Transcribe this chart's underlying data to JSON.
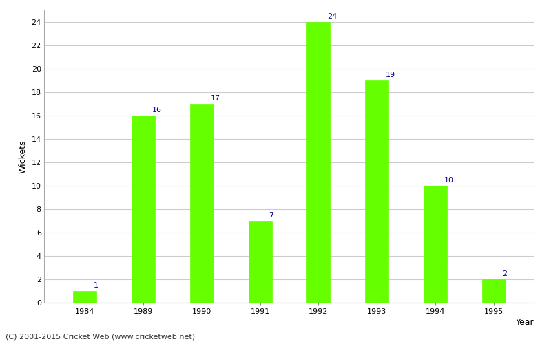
{
  "categories": [
    "1984",
    "1989",
    "1990",
    "1991",
    "1992",
    "1993",
    "1994",
    "1995"
  ],
  "values": [
    1,
    16,
    17,
    7,
    24,
    19,
    10,
    2
  ],
  "bar_color": "#66ff00",
  "bar_edge_color": "#66ff00",
  "xlabel": "Year",
  "ylabel": "Wickets",
  "ylim": [
    0,
    25
  ],
  "yticks": [
    0,
    2,
    4,
    6,
    8,
    10,
    12,
    14,
    16,
    18,
    20,
    22,
    24
  ],
  "label_color": "#000099",
  "label_fontsize": 8,
  "background_color": "#ffffff",
  "grid_color": "#cccccc",
  "xlabel_fontsize": 9,
  "ylabel_fontsize": 9,
  "tick_fontsize": 8,
  "footer_text": "(C) 2001-2015 Cricket Web (www.cricketweb.net)",
  "footer_fontsize": 8,
  "footer_color": "#333333",
  "bar_width": 0.4
}
